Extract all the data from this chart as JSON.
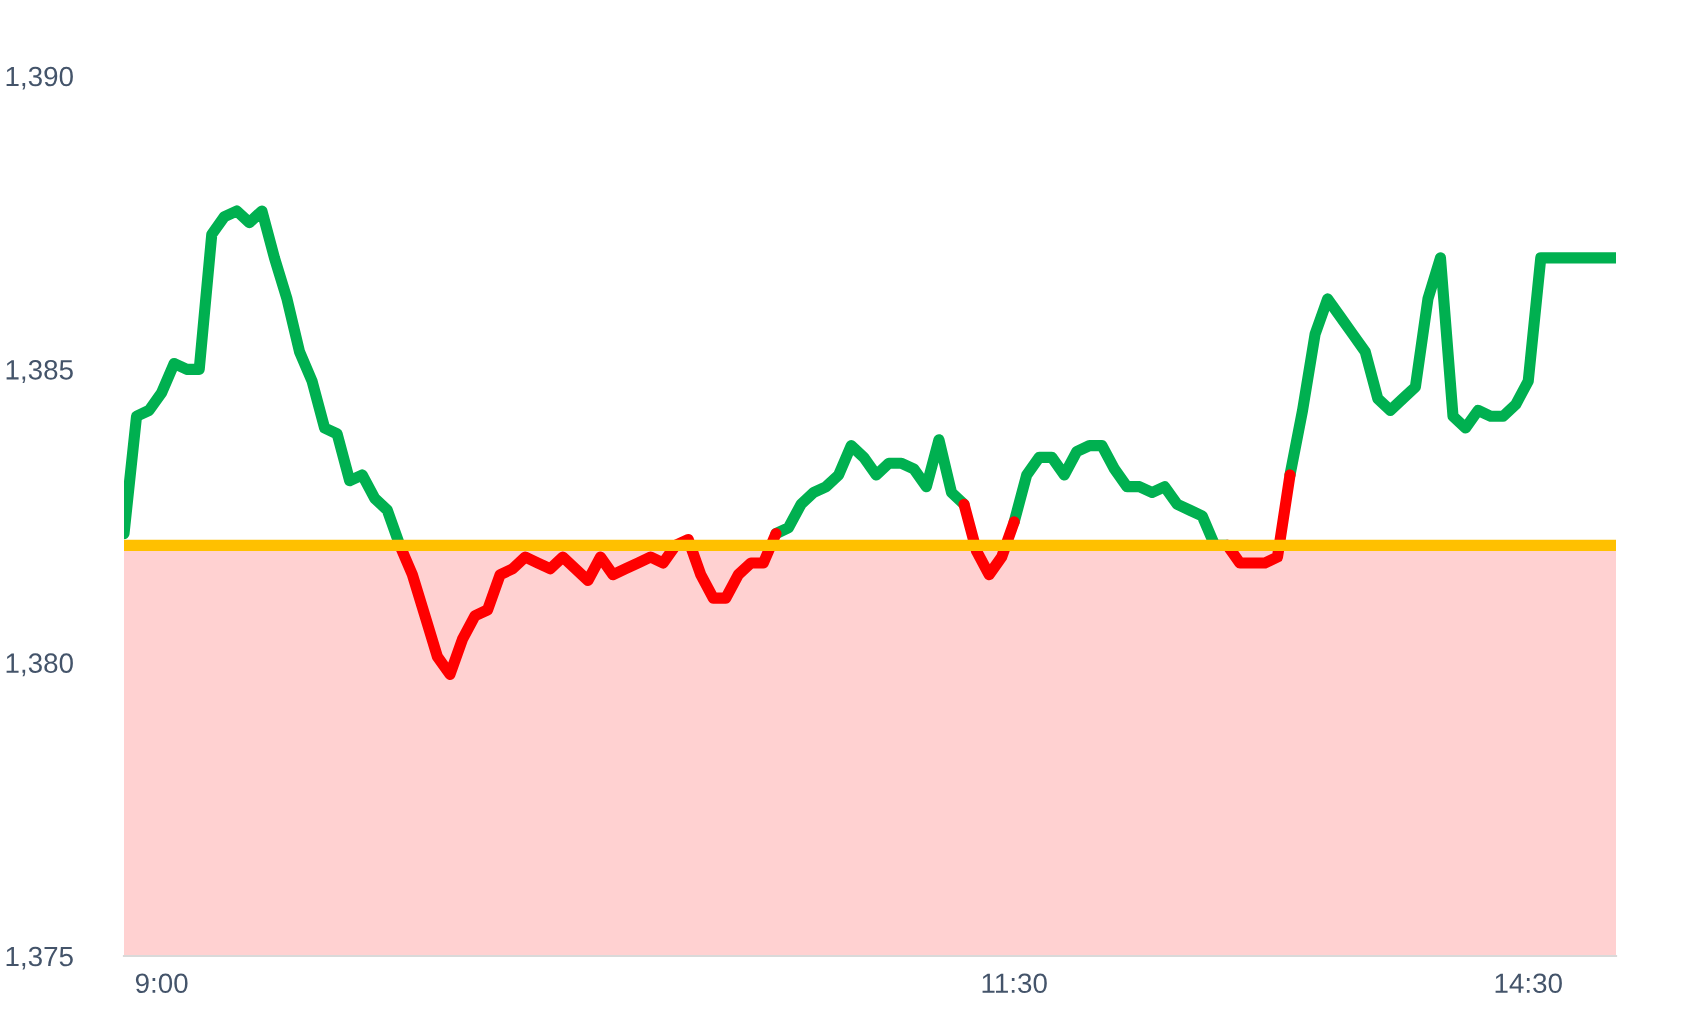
{
  "chart_data": {
    "type": "line",
    "categories": [
      null,
      null,
      null,
      "9:00",
      null,
      null,
      null,
      null,
      null,
      null,
      null,
      null,
      null,
      null,
      null,
      null,
      null,
      null,
      null,
      null,
      null,
      null,
      null,
      null,
      null,
      null,
      null,
      null,
      null,
      null,
      null,
      null,
      null,
      null,
      null,
      null,
      null,
      null,
      null,
      null,
      null,
      null,
      null,
      null,
      null,
      null,
      null,
      null,
      null,
      null,
      null,
      null,
      null,
      null,
      null,
      null,
      null,
      null,
      null,
      null,
      null,
      null,
      null,
      null,
      null,
      null,
      null,
      null,
      null,
      null,
      null,
      "11:30",
      null,
      null,
      null,
      null,
      null,
      null,
      null,
      null,
      null,
      null,
      null,
      null,
      null,
      null,
      null,
      null,
      null,
      null,
      null,
      null,
      null,
      null,
      null,
      null,
      null,
      null,
      null,
      null,
      null,
      null,
      null,
      null,
      null,
      null,
      null,
      null,
      null,
      null,
      null,
      null,
      "14:30",
      null,
      null,
      null,
      null,
      null,
      null,
      null
    ],
    "series": [
      {
        "color": "#00b050",
        "values": [
          1382.2,
          1384.2,
          1384.3,
          1384.6,
          1385.1,
          1385.0,
          1385.0,
          1387.3,
          1387.6,
          1387.7,
          1387.5,
          1387.7,
          1386.9,
          1386.2,
          1385.3,
          1384.8,
          1384.0,
          1383.9,
          1383.1,
          1383.2,
          1382.8,
          1382.6,
          1382.0,
          null,
          null,
          null,
          null,
          null,
          null,
          null,
          null,
          null,
          null,
          null,
          null,
          null,
          null,
          null,
          null,
          null,
          null,
          null,
          null,
          null,
          null,
          null,
          null,
          null,
          null,
          null,
          null,
          null,
          1382.2,
          1382.3,
          1382.7,
          1382.9,
          1383.0,
          1383.2,
          1383.7,
          1383.5,
          1383.2,
          1383.4,
          1383.4,
          1383.3,
          1383.0,
          1383.8,
          1382.9,
          1382.7,
          null,
          null,
          null,
          1382.4,
          1383.2,
          1383.5,
          1383.5,
          1383.2,
          1383.6,
          1383.7,
          1383.7,
          1383.3,
          1383.0,
          1383.0,
          1382.9,
          1383.0,
          1382.7,
          1382.6,
          1382.5,
          1382.0,
          1382.0,
          null,
          null,
          null,
          null,
          1383.2,
          1384.3,
          1385.6,
          1386.2,
          1385.9,
          1385.6,
          1385.3,
          1384.5,
          1384.3,
          1384.5,
          1384.7,
          1386.2,
          1386.9,
          1384.2,
          1384.0,
          1384.3,
          1384.2,
          1384.2,
          1384.4,
          1384.8,
          1386.9,
          1386.9,
          1386.9,
          1386.9,
          1386.9,
          1386.9,
          1386.9
        ]
      },
      {
        "color": "#ff0000",
        "values": [
          null,
          null,
          null,
          null,
          null,
          null,
          null,
          null,
          null,
          null,
          null,
          null,
          null,
          null,
          null,
          null,
          null,
          null,
          null,
          null,
          null,
          null,
          1382.0,
          1381.5,
          1380.8,
          1380.1,
          1379.8,
          1380.4,
          1380.8,
          1380.9,
          1381.5,
          1381.6,
          1381.8,
          1381.7,
          1381.6,
          1381.8,
          1381.6,
          1381.4,
          1381.8,
          1381.5,
          1381.6,
          1381.7,
          1381.8,
          1381.7,
          1382.0,
          1382.1,
          1381.5,
          1381.1,
          1381.1,
          1381.5,
          1381.7,
          1381.7,
          1382.2,
          null,
          null,
          null,
          null,
          null,
          null,
          null,
          null,
          null,
          null,
          null,
          null,
          null,
          null,
          1382.7,
          1381.9,
          1381.5,
          1381.8,
          1382.4,
          null,
          null,
          null,
          null,
          null,
          null,
          null,
          null,
          null,
          null,
          null,
          null,
          null,
          null,
          null,
          null,
          1382.0,
          1381.7,
          1381.7,
          1381.7,
          1381.8,
          1383.2,
          null,
          null,
          null,
          null,
          null,
          null,
          null,
          null,
          null,
          null,
          null,
          null,
          null,
          null,
          null,
          null,
          null,
          null,
          null,
          null,
          null,
          null,
          null,
          null,
          null,
          null
        ]
      }
    ],
    "ylim": [
      1375,
      1390
    ],
    "yticks": [
      {
        "value": 1375,
        "label": "1,375"
      },
      {
        "value": 1380,
        "label": "1,380"
      },
      {
        "value": 1385,
        "label": "1,385"
      },
      {
        "value": 1390,
        "label": "1,390"
      }
    ],
    "ref_lines": [
      {
        "axis": "y",
        "value": 1382,
        "color": "#ffc000"
      }
    ],
    "bands": [
      {
        "axis": "y",
        "from": 1375,
        "to": 1382,
        "color": "#ff0000"
      }
    ],
    "grid": false,
    "marker": "none",
    "line_style": "solid"
  }
}
